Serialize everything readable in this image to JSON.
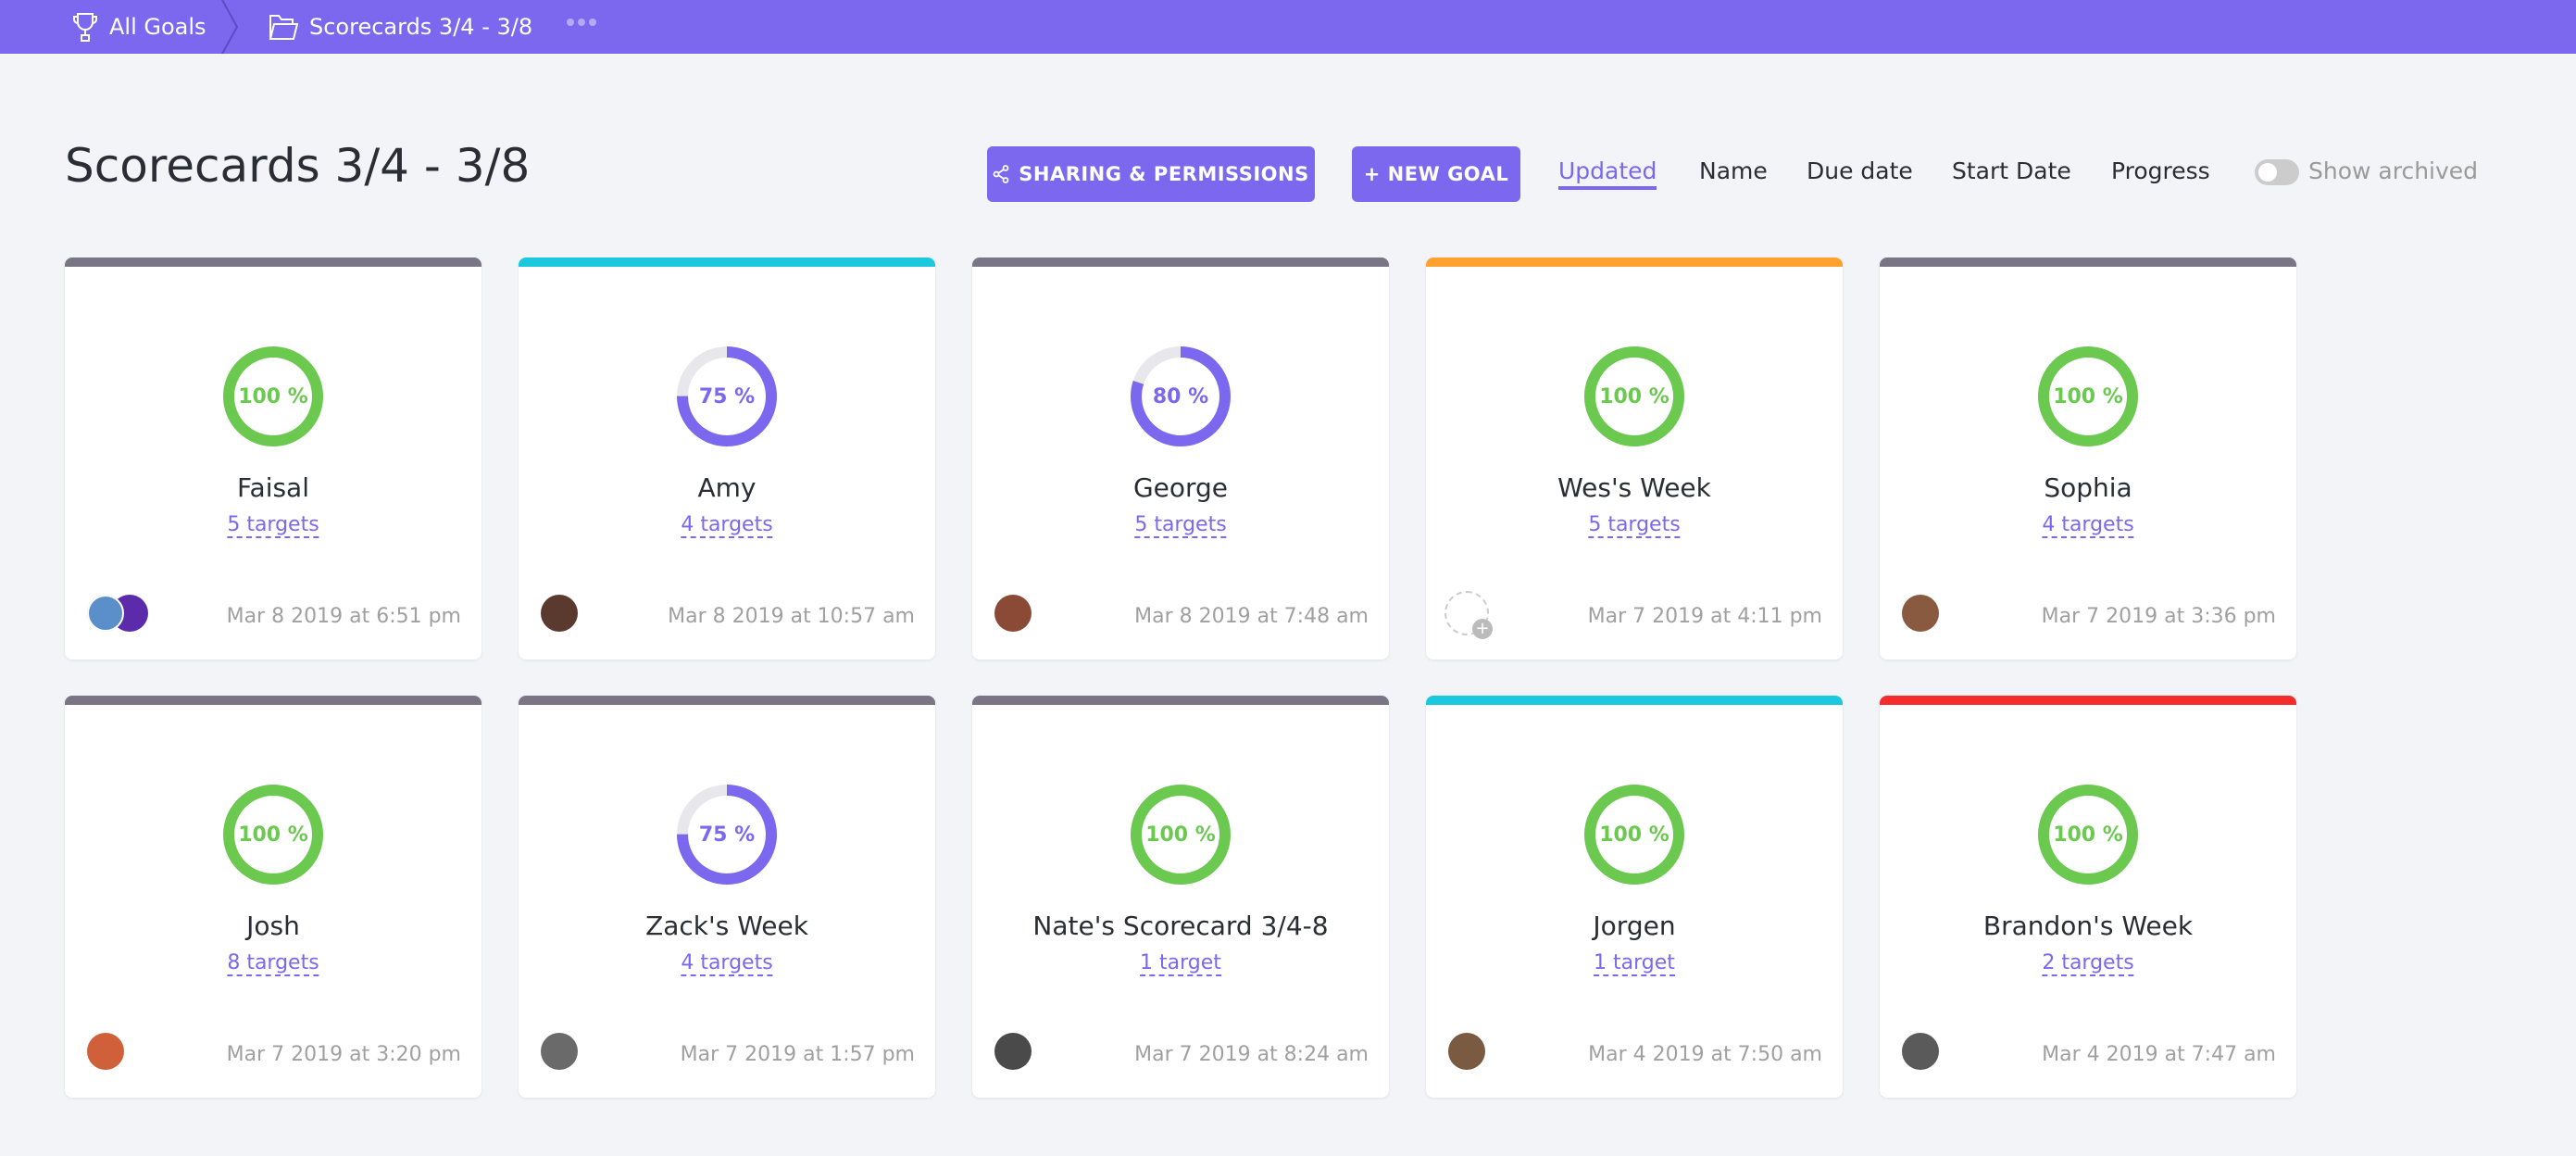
{
  "breadcrumb": {
    "root": "All Goals",
    "current": "Scorecards 3/4 - 3/8"
  },
  "page_title": "Scorecards 3/4 - 3/8",
  "toolbar": {
    "share_label": "SHARING & PERMISSIONS",
    "new_goal_label": "+ NEW GOAL",
    "sort_options": [
      "Updated",
      "Name",
      "Due date",
      "Start Date",
      "Progress"
    ],
    "active_sort": "Updated",
    "show_archived_label": "Show archived",
    "show_archived": false
  },
  "colors": {
    "accent": "#7b68ee",
    "complete": "#6bc950",
    "grey": "#7a7585",
    "cyan": "#1bc8dd",
    "orange": "#ffa12f",
    "red": "#f42c2c"
  },
  "goals": [
    {
      "name": "Faisal",
      "progress": 100,
      "progress_label": "100 %",
      "targets": "5 targets",
      "updated": "Mar 8 2019 at 6:51 pm",
      "color": "#7a7585",
      "avatar": "#5a8fc9",
      "extra_avatar": true
    },
    {
      "name": "Amy",
      "progress": 75,
      "progress_label": "75 %",
      "targets": "4 targets",
      "updated": "Mar 8 2019 at 10:57 am",
      "color": "#1bc8dd",
      "avatar": "#5a3a2e"
    },
    {
      "name": "George",
      "progress": 80,
      "progress_label": "80 %",
      "targets": "5 targets",
      "updated": "Mar 8 2019 at 7:48 am",
      "color": "#7a7585",
      "avatar": "#8a4a36"
    },
    {
      "name": "Wes's Week",
      "progress": 100,
      "progress_label": "100 %",
      "targets": "5 targets",
      "updated": "Mar 7 2019 at 4:11 pm",
      "color": "#ffa12f",
      "avatar": null
    },
    {
      "name": "Sophia",
      "progress": 100,
      "progress_label": "100 %",
      "targets": "4 targets",
      "updated": "Mar 7 2019 at 3:36 pm",
      "color": "#7a7585",
      "avatar": "#8a5a40"
    },
    {
      "name": "Josh",
      "progress": 100,
      "progress_label": "100 %",
      "targets": "8 targets",
      "updated": "Mar 7 2019 at 3:20 pm",
      "color": "#7a7585",
      "avatar": "#d0603a"
    },
    {
      "name": "Zack's Week",
      "progress": 75,
      "progress_label": "75 %",
      "targets": "4 targets",
      "updated": "Mar 7 2019 at 1:57 pm",
      "color": "#7a7585",
      "avatar": "#6a6a6a"
    },
    {
      "name": "Nate's Scorecard 3/4-8",
      "progress": 100,
      "progress_label": "100 %",
      "targets": "1 target",
      "updated": "Mar 7 2019 at 8:24 am",
      "color": "#7a7585",
      "avatar": "#4a4a4a"
    },
    {
      "name": "Jorgen",
      "progress": 100,
      "progress_label": "100 %",
      "targets": "1 target",
      "updated": "Mar 4 2019 at 7:50 am",
      "color": "#1bc8dd",
      "avatar": "#7a5a40"
    },
    {
      "name": "Brandon's Week",
      "progress": 100,
      "progress_label": "100 %",
      "targets": "2 targets",
      "updated": "Mar 4 2019 at 7:47 am",
      "color": "#f42c2c",
      "avatar": "#5a5a5a"
    }
  ]
}
